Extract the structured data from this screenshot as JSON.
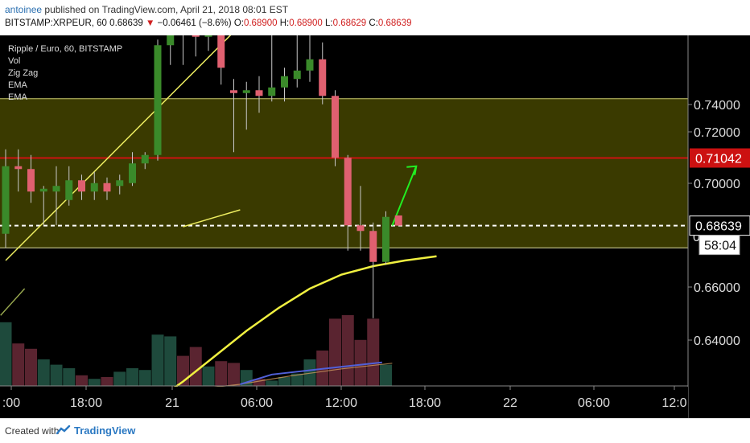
{
  "header": {
    "author": "antoinee",
    "published_text": "published on TradingView.com, April 21, 2018 08:01 EST",
    "symbol": "BITSTAMP:XRPEUR, 60",
    "last": "0.68639",
    "arrow": "▼",
    "change": "−0.06461 (−8.6%)",
    "o_label": "O:",
    "o_value": "0.68900",
    "h_label": "H:",
    "h_value": "0.68900",
    "l_label": "L:",
    "l_value": "0.68629",
    "c_label": "C:",
    "c_value": "0.68639"
  },
  "legend": {
    "title": "Ripple / Euro, 60, BITSTAMP",
    "items": [
      "Vol",
      "Zig Zag",
      "EMA",
      "EMA"
    ]
  },
  "footer": {
    "created_with": "Created with",
    "brand": "TradingView"
  },
  "colors": {
    "up": "#3a8a2a",
    "down": "#e06070",
    "zone": "#3a3a00",
    "resistance": "#cc1111",
    "ema": "#f0f040",
    "green_arrow": "#22ee22"
  },
  "chart_data": {
    "type": "candlestick",
    "y_ticks": [
      "0.74000",
      "0.72000",
      "0.70000",
      "0.66000",
      "0.64000"
    ],
    "x_ticks": [
      ":00",
      "18:00",
      "21",
      "06:00",
      "12:00",
      "18:00",
      "22",
      "06:00",
      "12:0"
    ],
    "ylim": [
      0.618,
      0.754
    ],
    "price_label": "0.68639",
    "resistance_label": "0.71042",
    "countdown": "58:04",
    "partial_tick": "0",
    "resistance_level": 0.71042,
    "current_price": 0.68639,
    "zone": [
      0.6785,
      0.7315
    ],
    "zone_line": 0.6785,
    "candles": [
      {
        "o": 0.6835,
        "h": 0.7135,
        "l": 0.6785,
        "c": 0.7075
      },
      {
        "o": 0.7075,
        "h": 0.7135,
        "l": 0.6985,
        "c": 0.7065
      },
      {
        "o": 0.7065,
        "h": 0.7115,
        "l": 0.6945,
        "c": 0.6985
      },
      {
        "o": 0.6985,
        "h": 0.7005,
        "l": 0.6865,
        "c": 0.6995
      },
      {
        "o": 0.6985,
        "h": 0.7075,
        "l": 0.6865,
        "c": 0.7005
      },
      {
        "o": 0.6955,
        "h": 0.7075,
        "l": 0.6935,
        "c": 0.7025
      },
      {
        "o": 0.7025,
        "h": 0.7045,
        "l": 0.6955,
        "c": 0.6985
      },
      {
        "o": 0.6985,
        "h": 0.7055,
        "l": 0.6955,
        "c": 0.7015
      },
      {
        "o": 0.7015,
        "h": 0.7035,
        "l": 0.6955,
        "c": 0.6985
      },
      {
        "o": 0.7005,
        "h": 0.7045,
        "l": 0.6975,
        "c": 0.7025
      },
      {
        "o": 0.7015,
        "h": 0.7125,
        "l": 0.7005,
        "c": 0.7085
      },
      {
        "o": 0.7085,
        "h": 0.7125,
        "l": 0.7065,
        "c": 0.7115
      },
      {
        "o": 0.7115,
        "h": 0.7525,
        "l": 0.7095,
        "c": 0.7505
      },
      {
        "o": 0.7505,
        "h": 0.7615,
        "l": 0.7435,
        "c": 0.7625
      },
      {
        "o": 0.7625,
        "h": 0.7665,
        "l": 0.7435,
        "c": 0.7595
      },
      {
        "o": 0.7595,
        "h": 0.7655,
        "l": 0.7465,
        "c": 0.7535
      },
      {
        "o": 0.7535,
        "h": 0.7585,
        "l": 0.7485,
        "c": 0.7555
      },
      {
        "o": 0.7555,
        "h": 0.7595,
        "l": 0.7365,
        "c": 0.7425
      },
      {
        "o": 0.7345,
        "h": 0.7385,
        "l": 0.7125,
        "c": 0.7335
      },
      {
        "o": 0.7335,
        "h": 0.7375,
        "l": 0.7205,
        "c": 0.7345
      },
      {
        "o": 0.7345,
        "h": 0.7395,
        "l": 0.7265,
        "c": 0.7325
      },
      {
        "o": 0.7325,
        "h": 0.7565,
        "l": 0.7305,
        "c": 0.7355
      },
      {
        "o": 0.7355,
        "h": 0.7425,
        "l": 0.7305,
        "c": 0.7395
      },
      {
        "o": 0.7385,
        "h": 0.7575,
        "l": 0.7355,
        "c": 0.7415
      },
      {
        "o": 0.7415,
        "h": 0.7585,
        "l": 0.7375,
        "c": 0.7455
      },
      {
        "o": 0.7455,
        "h": 0.7515,
        "l": 0.7295,
        "c": 0.7325
      },
      {
        "o": 0.7325,
        "h": 0.7345,
        "l": 0.7075,
        "c": 0.7105
      },
      {
        "o": 0.7105,
        "h": 0.7115,
        "l": 0.6775,
        "c": 0.6865
      },
      {
        "o": 0.6865,
        "h": 0.7005,
        "l": 0.6775,
        "c": 0.6845
      },
      {
        "o": 0.6845,
        "h": 0.6875,
        "l": 0.6535,
        "c": 0.6735
      },
      {
        "o": 0.6735,
        "h": 0.6915,
        "l": 0.6725,
        "c": 0.6895
      },
      {
        "o": 0.69,
        "h": 0.69,
        "l": 0.6863,
        "c": 0.6864
      }
    ],
    "volumes": [
      3.6,
      2.4,
      2.1,
      1.5,
      1.2,
      1.0,
      0.6,
      0.4,
      0.5,
      0.8,
      1.0,
      0.9,
      2.9,
      2.8,
      1.7,
      2.2,
      1.1,
      1.4,
      1.3,
      0.9,
      0.4,
      0.3,
      0.5,
      0.7,
      1.5,
      2.0,
      3.8,
      4.0,
      2.6,
      3.8,
      1.2
    ],
    "ema_fast": [
      0.605,
      0.61,
      0.616,
      0.623,
      0.631,
      0.64,
      0.649,
      0.657,
      0.664,
      0.669,
      0.672,
      0.674,
      0.6755
    ],
    "ema_slow": [
      0.628,
      0.63,
      0.633,
      0.6355,
      0.6375
    ],
    "zigzag": [
      [
        0.674,
        0.651,
        0.7575
      ],
      [
        0.686,
        0.692
      ]
    ],
    "annotation": {
      "from": 0.6864,
      "to": 0.7075
    }
  }
}
